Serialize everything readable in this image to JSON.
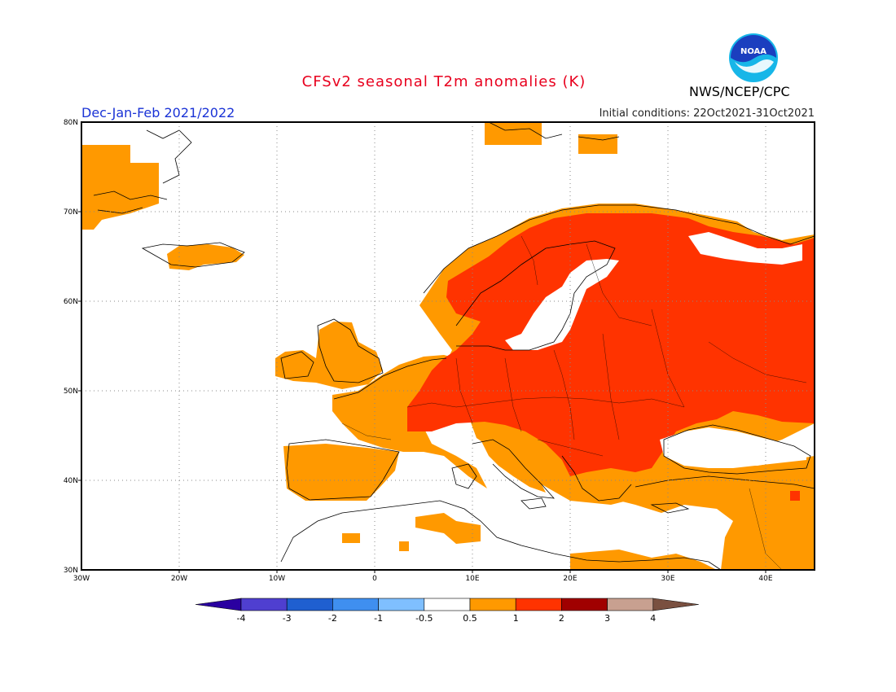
{
  "header": {
    "title": "CFSv2 seasonal T2m anomalies (K)",
    "season": "Dec-Jan-Feb 2021/2022",
    "initial_conditions": "Initial conditions: 22Oct2021-31Oct2021",
    "agency": "NWS/NCEP/CPC",
    "logo_text": "NOAA"
  },
  "map": {
    "region": "Europe",
    "lon_range": [
      -30,
      45
    ],
    "lat_range": [
      30,
      80
    ],
    "lon_ticks": [
      "30W",
      "20W",
      "10W",
      "0",
      "10E",
      "20E",
      "30E",
      "40E"
    ],
    "lat_ticks": [
      "80N",
      "70N",
      "60N",
      "50N",
      "40N",
      "30N"
    ],
    "grid": true,
    "anomaly_fill": {
      "very_warm_color": "#ff3300",
      "warm_color": "#ff9900"
    }
  },
  "colorbar": {
    "labels": [
      "-4",
      "-3",
      "-2",
      "-1",
      "-0.5",
      "0.5",
      "1",
      "2",
      "3",
      "4"
    ],
    "colors": [
      "#2a00a0",
      "#4f3fd0",
      "#1f5fd0",
      "#3f8ff0",
      "#7fbfff",
      "#ffffff",
      "#ff9900",
      "#ff3300",
      "#a00000",
      "#c8a090",
      "#7a5040"
    ]
  }
}
